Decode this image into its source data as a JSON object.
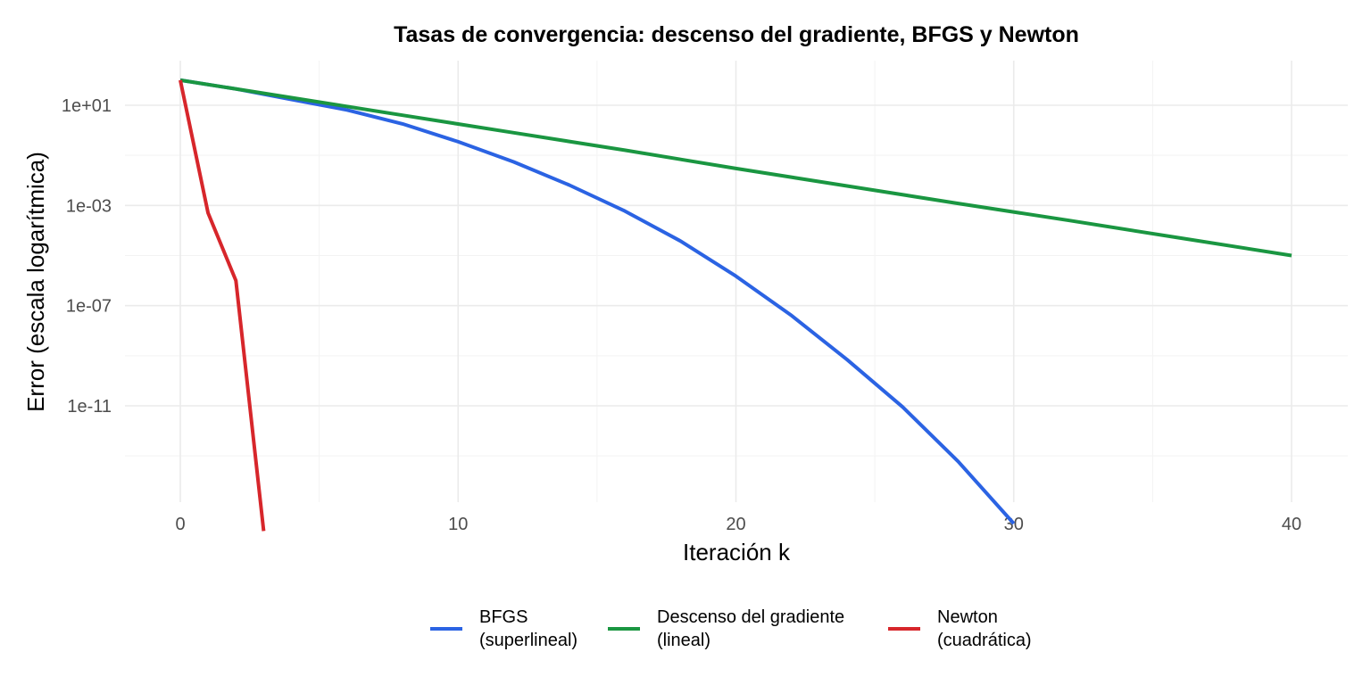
{
  "chart_data": {
    "type": "line",
    "title": "Tasas de convergencia: descenso del gradiente, BFGS y Newton",
    "xlabel": "Iteración k",
    "ylabel": "Error (escala logarítmica)",
    "y_scale": "log10",
    "xlim": [
      -2,
      42
    ],
    "ylim": [
      3e-15,
      300
    ],
    "x_ticks": [
      0,
      10,
      20,
      30,
      40
    ],
    "x_tick_labels": [
      "0",
      "10",
      "20",
      "30",
      "40"
    ],
    "y_ticks": [
      10,
      0.001,
      1e-07,
      1e-11
    ],
    "y_tick_labels": [
      "1e+01",
      "1e-03",
      "1e-07",
      "1e-11"
    ],
    "grid": true,
    "legend_position": "bottom",
    "series": [
      {
        "name": "BFGS\n(superlineal)",
        "color": "#2b63e3",
        "x": [
          0,
          2,
          4,
          6,
          8,
          10,
          12,
          14,
          16,
          18,
          20,
          22,
          24,
          26,
          28,
          30
        ],
        "y": [
          100,
          45,
          17,
          6.5,
          1.8,
          0.35,
          0.055,
          0.0065,
          0.0006,
          3.8e-05,
          1.5e-06,
          4e-08,
          7e-10,
          9e-12,
          6e-14,
          2e-16
        ]
      },
      {
        "name": "Descenso del gradiente\n(lineal)",
        "color": "#1a9641",
        "x": [
          0,
          4,
          8,
          12,
          16,
          20,
          24,
          28,
          32,
          36,
          40
        ],
        "y": [
          100,
          20,
          4,
          0.8,
          0.16,
          0.03,
          0.006,
          0.0012,
          0.00025,
          5e-05,
          1e-05
        ]
      },
      {
        "name": "Newton\n(cuadrática)",
        "color": "#d7262b",
        "x": [
          0,
          1,
          2,
          3
        ],
        "y": [
          100,
          0.0005,
          1e-06,
          1e-16
        ]
      }
    ]
  }
}
